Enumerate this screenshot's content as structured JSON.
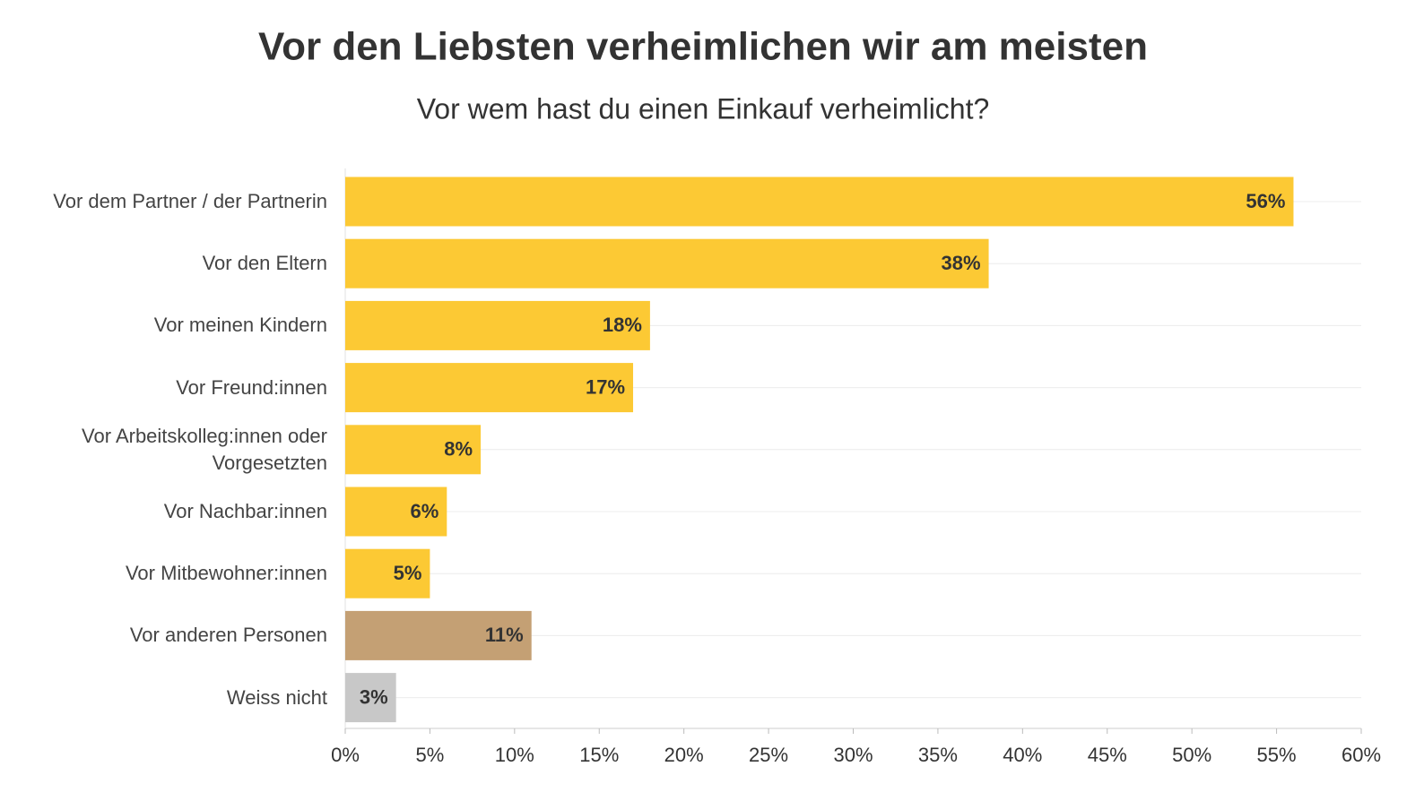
{
  "chart_data": {
    "type": "barh",
    "title": "Vor den Liebsten verheimlichen wir am meisten",
    "subtitle": "Vor wem hast du einen Einkauf verheimlicht?",
    "categories": [
      "Vor dem Partner / der Partnerin",
      "Vor den Eltern",
      "Vor meinen Kindern",
      "Vor Freund:innen",
      "Vor Arbeitskolleg:innen oder Vorgesetzten",
      "Vor Nachbar:innen",
      "Vor Mitbewohner:innen",
      "Vor anderen Personen",
      "Weiss nicht"
    ],
    "values": [
      56,
      38,
      18,
      17,
      8,
      6,
      5,
      11,
      3
    ],
    "value_labels": [
      "56%",
      "38%",
      "18%",
      "17%",
      "8%",
      "6%",
      "5%",
      "11%",
      "3%"
    ],
    "colors": [
      "#fcc934",
      "#fcc934",
      "#fcc934",
      "#fcc934",
      "#fcc934",
      "#fcc934",
      "#fcc934",
      "#c4a074",
      "#c8c8c8"
    ],
    "xlim": [
      0,
      60
    ],
    "xticks": [
      {
        "value": 0,
        "label": "0%"
      },
      {
        "value": 5,
        "label": "5%"
      },
      {
        "value": 10,
        "label": "10%"
      },
      {
        "value": 15,
        "label": "15%"
      },
      {
        "value": 20,
        "label": "20%"
      },
      {
        "value": 25,
        "label": "25%"
      },
      {
        "value": 30,
        "label": "30%"
      },
      {
        "value": 35,
        "label": "35%"
      },
      {
        "value": 40,
        "label": "40%"
      },
      {
        "value": 45,
        "label": "45%"
      },
      {
        "value": 50,
        "label": "50%"
      },
      {
        "value": 55,
        "label": "55%"
      },
      {
        "value": 60,
        "label": "60%"
      }
    ]
  }
}
